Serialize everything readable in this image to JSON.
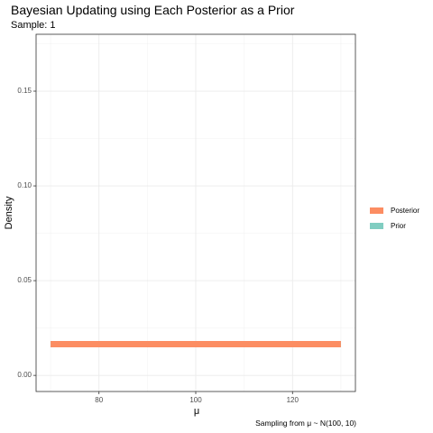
{
  "chart_data": {
    "type": "line",
    "title": "Bayesian Updating using Each Posterior as a Prior",
    "subtitle": "Sample: 1",
    "xlabel": "μ",
    "ylabel": "Density",
    "caption": "Sampling from μ ~ N(100, 10)",
    "xlim": [
      67,
      133
    ],
    "ylim": [
      -0.0085,
      0.18
    ],
    "x_ticks": [
      80,
      100,
      120
    ],
    "y_ticks": [
      0.0,
      0.05,
      0.1,
      0.15
    ],
    "x_tick_labels": [
      "80",
      "100",
      "120"
    ],
    "y_tick_labels": [
      "0.00",
      "0.05",
      "0.10",
      "0.15"
    ],
    "grid": true,
    "legend_position": "right",
    "series": [
      {
        "name": "Posterior",
        "color": "#FC8D62",
        "x": [
          70,
          130
        ],
        "y": [
          0.0165,
          0.0165
        ]
      },
      {
        "name": "Prior",
        "color": "#80CDC1",
        "x": [
          70,
          130
        ],
        "y": [
          0.0165,
          0.0165
        ]
      }
    ]
  }
}
